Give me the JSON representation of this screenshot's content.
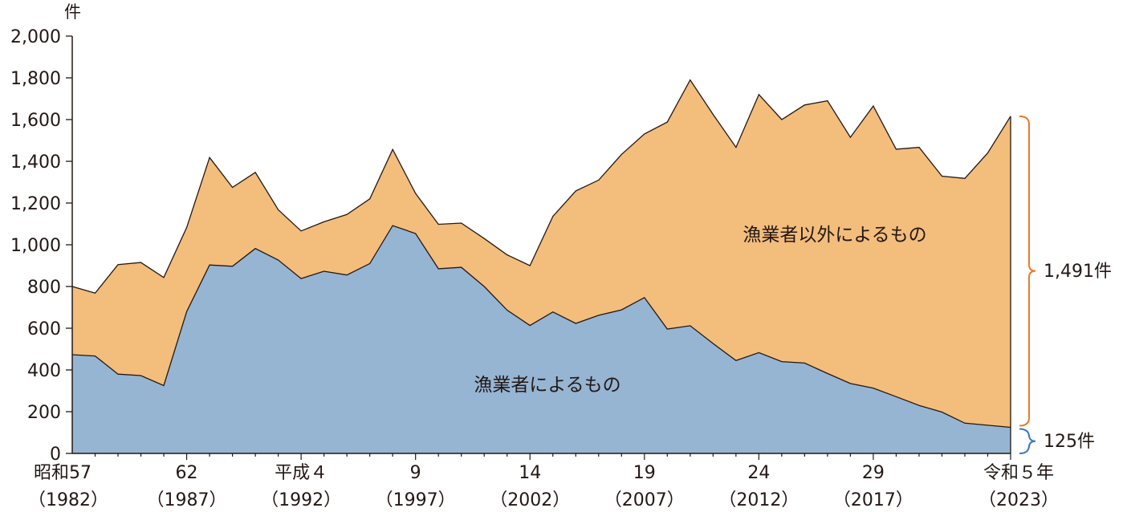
{
  "chart_data": {
    "type": "area",
    "stacked": true,
    "y_unit_label": "件",
    "ylim": [
      0,
      2000
    ],
    "yticks": [
      "0",
      "200",
      "400",
      "600",
      "800",
      "1,000",
      "1,200",
      "1,400",
      "1,600",
      "1,800",
      "2,000"
    ],
    "x_years": [
      1982,
      1983,
      1984,
      1985,
      1986,
      1987,
      1988,
      1989,
      1990,
      1991,
      1992,
      1993,
      1994,
      1995,
      1996,
      1997,
      1998,
      1999,
      2000,
      2001,
      2002,
      2003,
      2004,
      2005,
      2006,
      2007,
      2008,
      2009,
      2010,
      2011,
      2012,
      2013,
      2014,
      2015,
      2016,
      2017,
      2018,
      2019,
      2020,
      2021,
      2022,
      2023
    ],
    "xticks": [
      {
        "year": 1982,
        "era": "昭和57",
        "western": "（1982）"
      },
      {
        "year": 1987,
        "era": "62",
        "western": "（1987）"
      },
      {
        "year": 1992,
        "era": "平成４",
        "western": "（1992）"
      },
      {
        "year": 1997,
        "era": "9",
        "western": "（1997）"
      },
      {
        "year": 2002,
        "era": "14",
        "western": "（2002）"
      },
      {
        "year": 2007,
        "era": "19",
        "western": "（2007）"
      },
      {
        "year": 2012,
        "era": "24",
        "western": "（2012）"
      },
      {
        "year": 2017,
        "era": "29",
        "western": "（2017）"
      },
      {
        "year": 2023,
        "era": "令和５年",
        "western": "（2023）"
      }
    ],
    "series": [
      {
        "name": "漁業者によるもの",
        "color": "#95b5d3",
        "values": [
          473,
          467,
          380,
          373,
          325,
          680,
          903,
          897,
          982,
          927,
          838,
          873,
          855,
          910,
          1092,
          1054,
          885,
          892,
          800,
          687,
          613,
          678,
          623,
          662,
          688,
          747,
          596,
          612,
          527,
          445,
          483,
          440,
          433,
          383,
          335,
          313,
          272,
          230,
          198,
          145,
          135,
          125
        ]
      },
      {
        "name": "漁業者以外によるもの",
        "color": "#f3bd7c",
        "values": [
          327,
          301,
          525,
          542,
          518,
          403,
          515,
          378,
          365,
          241,
          228,
          237,
          290,
          310,
          365,
          192,
          213,
          212,
          230,
          265,
          287,
          458,
          635,
          648,
          745,
          784,
          992,
          1178,
          1098,
          1022,
          1237,
          1160,
          1237,
          1307,
          1180,
          1352,
          1186,
          1237,
          1131,
          1173,
          1305,
          1491
        ]
      }
    ],
    "annotations": {
      "area_label_other": "漁業者以外によるもの",
      "area_label_fishers": "漁業者によるもの",
      "bracket_other": "1,491件",
      "bracket_fishers": "125件"
    },
    "brace_colors": {
      "other": "#ec7a2b",
      "fishers": "#3d7ab9"
    }
  }
}
